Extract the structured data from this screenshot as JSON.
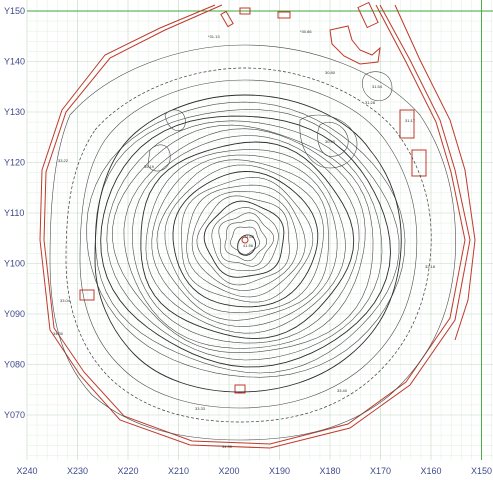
{
  "map": {
    "x_labels": [
      "X240",
      "X230",
      "X220",
      "X210",
      "X200",
      "X190",
      "X180",
      "X170",
      "X160",
      "X150"
    ],
    "y_labels": [
      "Y150",
      "Y140",
      "Y130",
      "Y120",
      "Y110",
      "Y100",
      "Y090",
      "Y080",
      "Y070"
    ],
    "colors": {
      "grid": "#bfd9bf",
      "grid_major": "#3aa83a",
      "boundary": "#c0392b",
      "contour": "#4a4a4a",
      "axis_text": "#3f4a8a"
    }
  }
}
